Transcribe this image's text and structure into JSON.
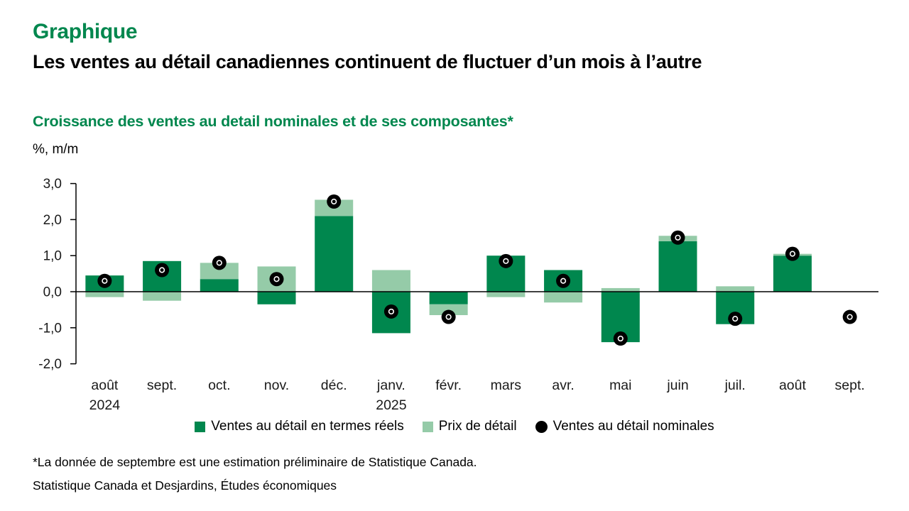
{
  "page": {
    "kicker": "Graphique",
    "headline": "Les ventes au détail canadiennes continuent de fluctuer d’un mois à l’autre",
    "chart_title": "Croissance des ventes au detail nominales et de ses composantes*",
    "unit_label": "%, m/m",
    "footnote": "*La donnée de septembre est une estimation préliminaire de Statistique Canada.",
    "source": "Statistique Canada et Desjardins, Études économiques"
  },
  "colors": {
    "brand_green": "#00874E",
    "dark_green": "#00874E",
    "light_green": "#95CBA8",
    "dot_black": "#000000"
  },
  "legend": [
    {
      "label": "Ventes au détail en termes réels",
      "swatch": "dark_green"
    },
    {
      "label": "Prix de détail",
      "swatch": "light_green"
    },
    {
      "label": "Ventes au détail nominales",
      "swatch": "dot_black"
    }
  ],
  "chart_data": {
    "type": "bar",
    "title": "Croissance des ventes au detail nominales et de ses composantes*",
    "xlabel": "",
    "ylabel": "%, m/m",
    "ylim": [
      -2.0,
      3.0
    ],
    "yticks": [
      3,
      2,
      1,
      0,
      -1,
      -2
    ],
    "ytick_labels": [
      "3,0",
      "2,0",
      "1,0",
      "0,0",
      "-1,0",
      "-2,0"
    ],
    "grid": false,
    "legend_position": "bottom",
    "stacked": true,
    "categories": [
      {
        "label": "août",
        "sublabel": "2024"
      },
      {
        "label": "sept."
      },
      {
        "label": "oct."
      },
      {
        "label": "nov."
      },
      {
        "label": "déc."
      },
      {
        "label": "janv.",
        "sublabel": "2025"
      },
      {
        "label": "févr."
      },
      {
        "label": "mars"
      },
      {
        "label": "avr."
      },
      {
        "label": "mai"
      },
      {
        "label": "juin"
      },
      {
        "label": "juil."
      },
      {
        "label": "août"
      },
      {
        "label": "sept."
      }
    ],
    "series": [
      {
        "name": "Ventes au détail en termes réels",
        "type": "bar",
        "color": "#00874E",
        "values": [
          0.45,
          0.85,
          0.35,
          -0.35,
          2.1,
          -1.15,
          -0.35,
          1.0,
          0.6,
          -1.4,
          1.4,
          -0.9,
          1.0,
          null
        ]
      },
      {
        "name": "Prix de détail",
        "type": "bar",
        "color": "#95CBA8",
        "values": [
          -0.15,
          -0.25,
          0.45,
          0.7,
          0.45,
          0.6,
          -0.3,
          -0.15,
          -0.3,
          0.1,
          0.15,
          0.15,
          0.05,
          null
        ]
      },
      {
        "name": "Ventes au détail nominales",
        "type": "scatter",
        "color": "#000000",
        "marker": "black-dot-with-white-ring",
        "values": [
          0.3,
          0.6,
          0.8,
          0.35,
          2.5,
          -0.55,
          -0.7,
          0.85,
          0.3,
          -1.3,
          1.5,
          -0.75,
          1.05,
          -0.7
        ]
      }
    ]
  }
}
